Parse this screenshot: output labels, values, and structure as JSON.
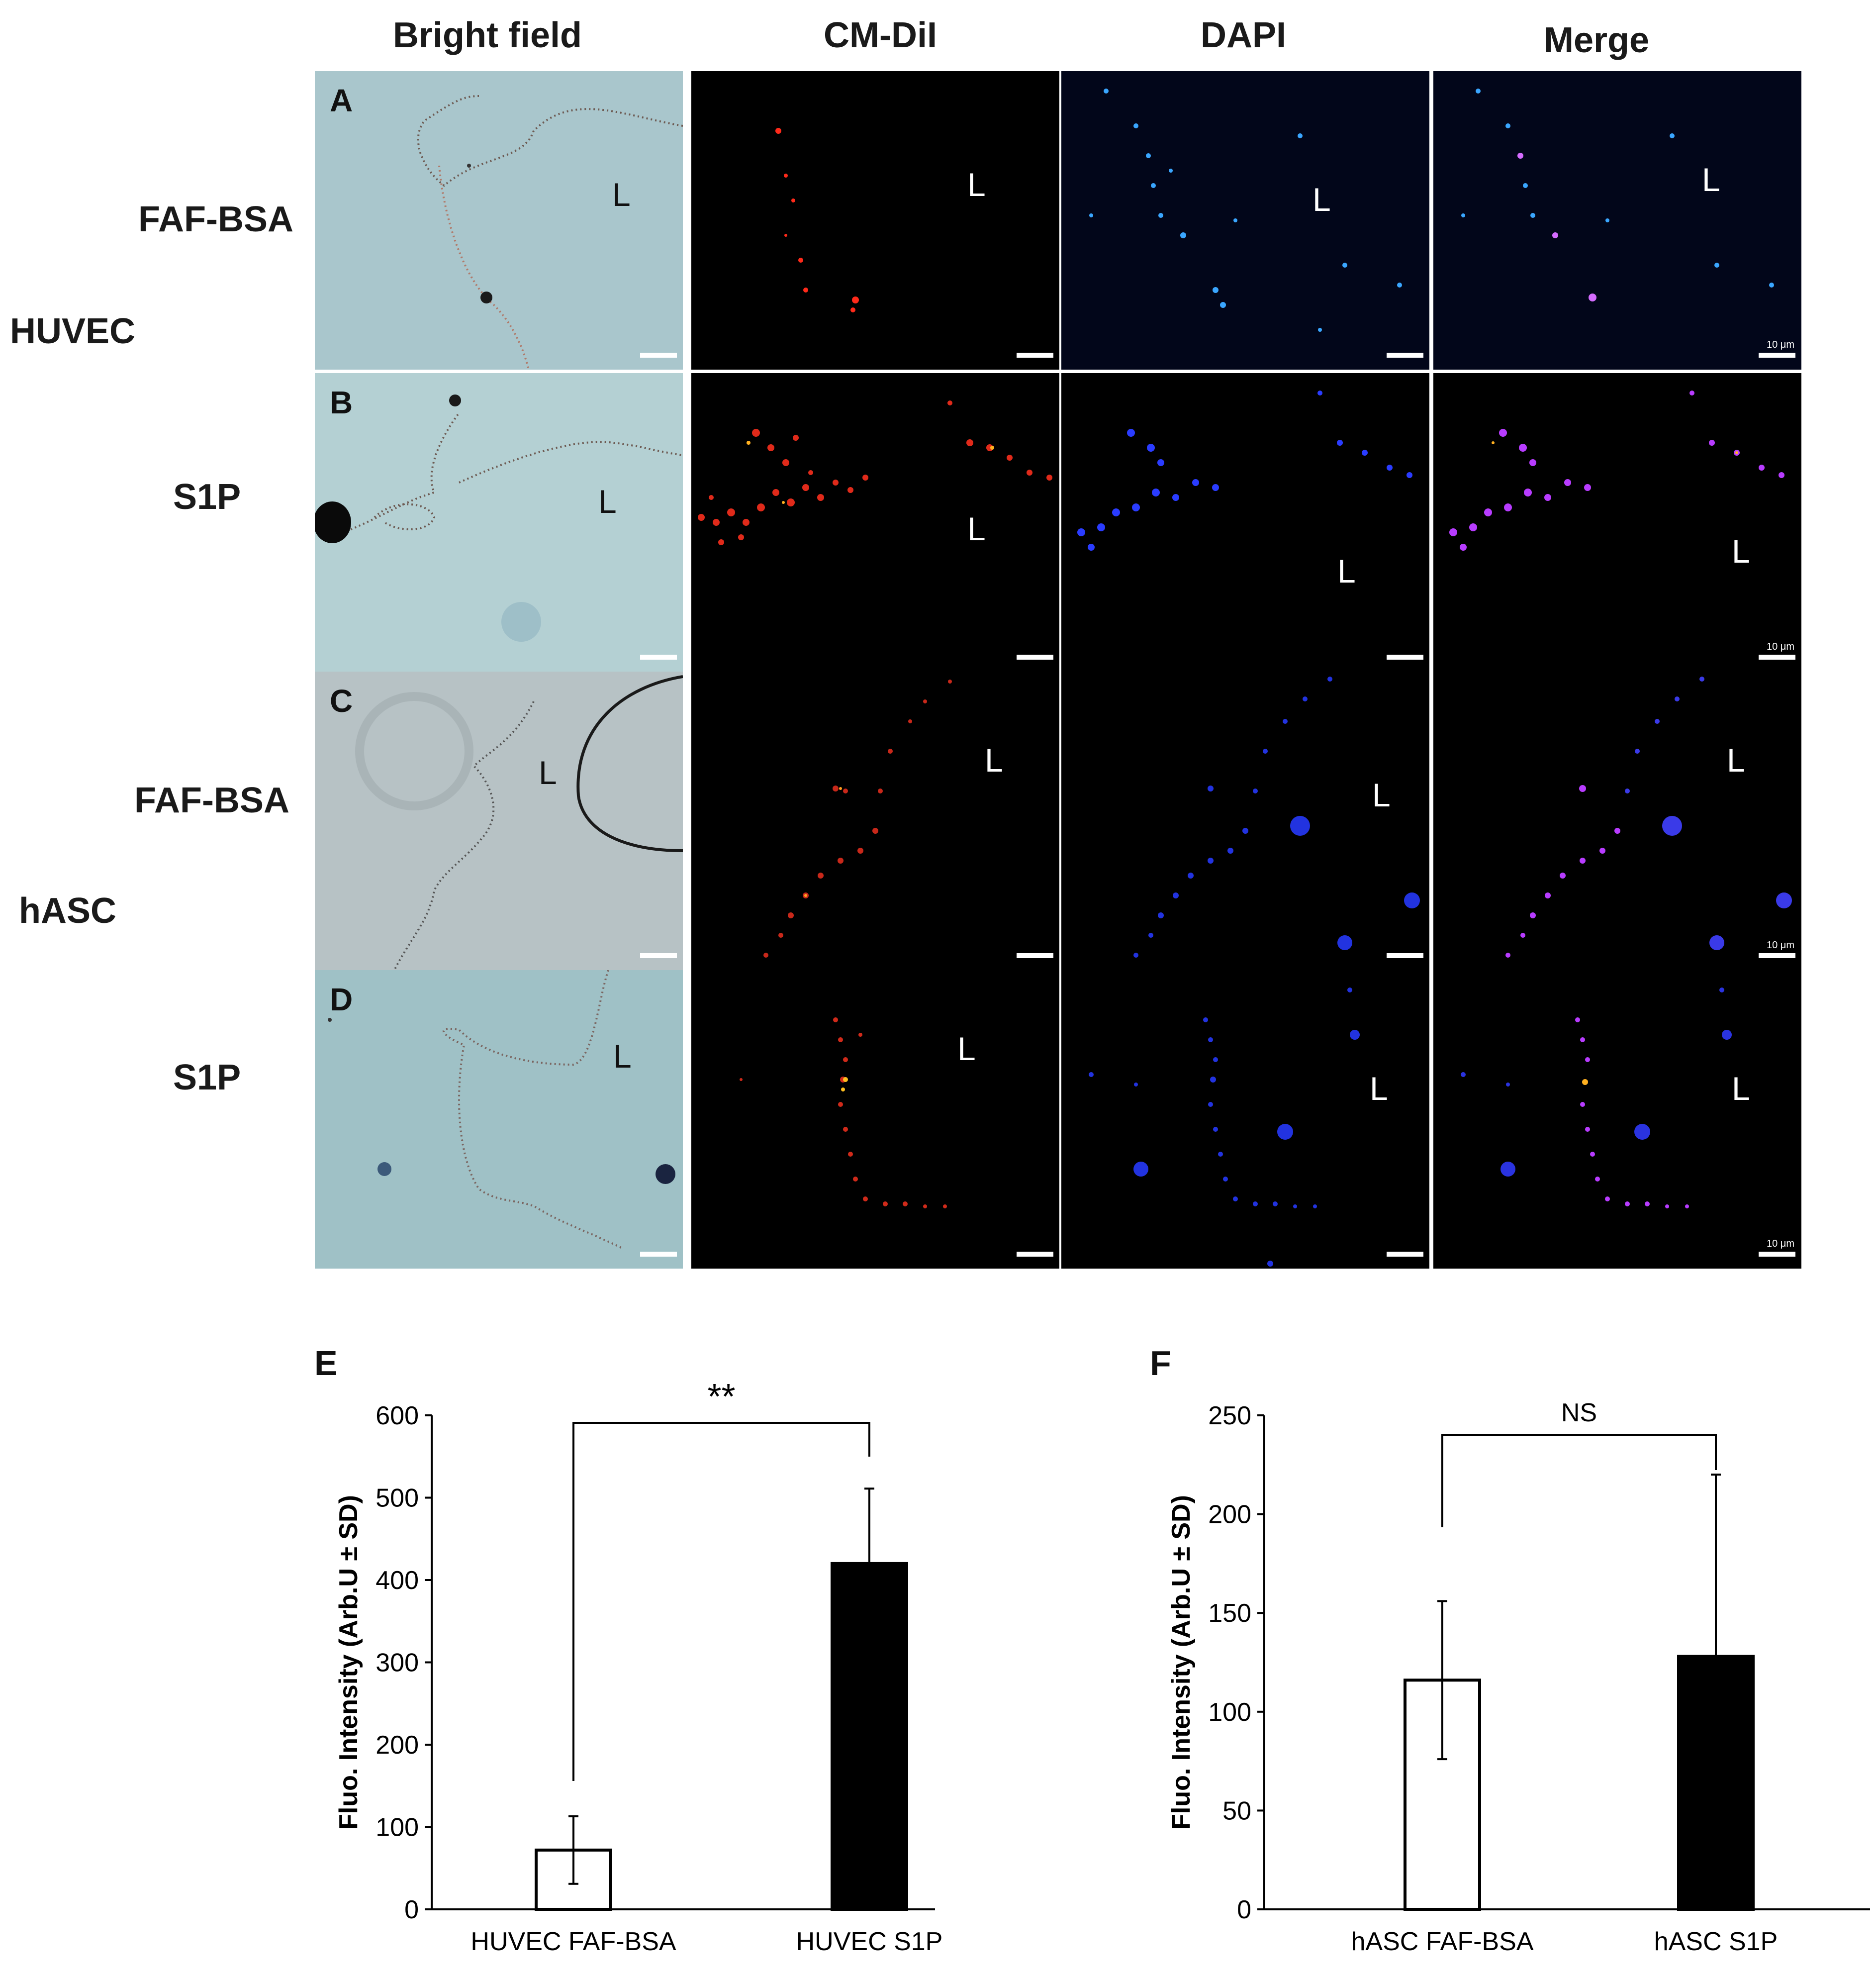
{
  "column_headers": [
    "Bright field",
    "CM-DiI",
    "DAPI",
    "Merge"
  ],
  "cell_lines": [
    "HUVEC",
    "hASC"
  ],
  "rows": [
    {
      "letter": "A",
      "treatment": "FAF-BSA"
    },
    {
      "letter": "B",
      "treatment": "S1P"
    },
    {
      "letter": "C",
      "treatment": "FAF-BSA"
    },
    {
      "letter": "D",
      "treatment": "S1P"
    }
  ],
  "lumen_label": "L",
  "scale_label": "10 μm",
  "colors": {
    "brightfield": "#a9c6cc",
    "brightfield_gray": "#b7c2c5",
    "cmdil": "#ff2a1a",
    "dapi": "#2a4dff",
    "merge": "#c040ff",
    "bar_empty": "#ffffff",
    "bar_filled": "#000000"
  },
  "chart_data": [
    {
      "panel": "E",
      "type": "bar",
      "categories": [
        "HUVEC FAF-BSA",
        "HUVEC S1P"
      ],
      "values": [
        72,
        420
      ],
      "errors": [
        41,
        91
      ],
      "ylabel": "Fluo. Intensity (Arb.U ± SD)",
      "ylim": [
        0,
        600
      ],
      "yticks": [
        0,
        100,
        200,
        300,
        400,
        500,
        600
      ],
      "significance": "**"
    },
    {
      "panel": "F",
      "type": "bar",
      "categories": [
        "hASC FAF-BSA",
        "hASC S1P"
      ],
      "values": [
        116,
        128
      ],
      "errors": [
        40,
        92
      ],
      "ylabel": "Fluo. Intensity (Arb.U ± SD)",
      "ylim": [
        0,
        250
      ],
      "yticks": [
        0,
        50,
        100,
        150,
        200,
        250
      ],
      "significance": "NS"
    }
  ]
}
